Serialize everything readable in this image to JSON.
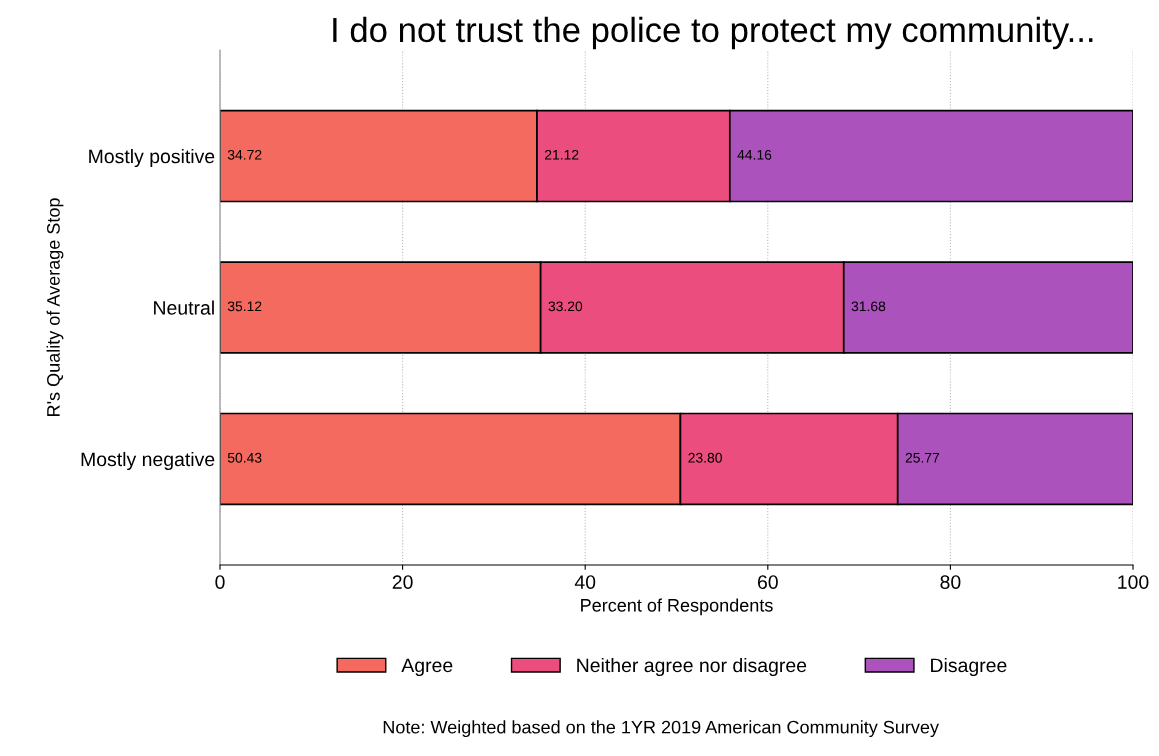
{
  "chart_data": {
    "type": "bar",
    "orientation": "horizontal",
    "stacked": true,
    "title": "I do not trust the police to protect my community...",
    "xlabel": "Percent of Respondents",
    "ylabel": "R's Quality of Average Stop",
    "categories": [
      "Mostly positive",
      "Neutral",
      "Mostly negative"
    ],
    "series": [
      {
        "name": "Agree",
        "color": "#f46a5e",
        "values": [
          34.72,
          35.12,
          50.43
        ],
        "value_labels": [
          "34.72",
          "35.12",
          "50.43"
        ]
      },
      {
        "name": "Neither agree nor disagree",
        "color": "#ea4d7e",
        "values": [
          21.12,
          33.2,
          23.8
        ],
        "value_labels": [
          "21.12",
          "33.20",
          "23.80"
        ]
      },
      {
        "name": "Disagree",
        "color": "#ab52bd",
        "values": [
          44.16,
          31.68,
          25.77
        ],
        "value_labels": [
          "44.16",
          "31.68",
          "25.77"
        ]
      }
    ],
    "xlim": [
      0,
      100
    ],
    "xticks": [
      0,
      20,
      40,
      60,
      80,
      100
    ],
    "grid": "x",
    "legend": "bottom",
    "annotations": [
      "Note: Weighted based on the 1YR 2019 American Community Survey"
    ]
  }
}
